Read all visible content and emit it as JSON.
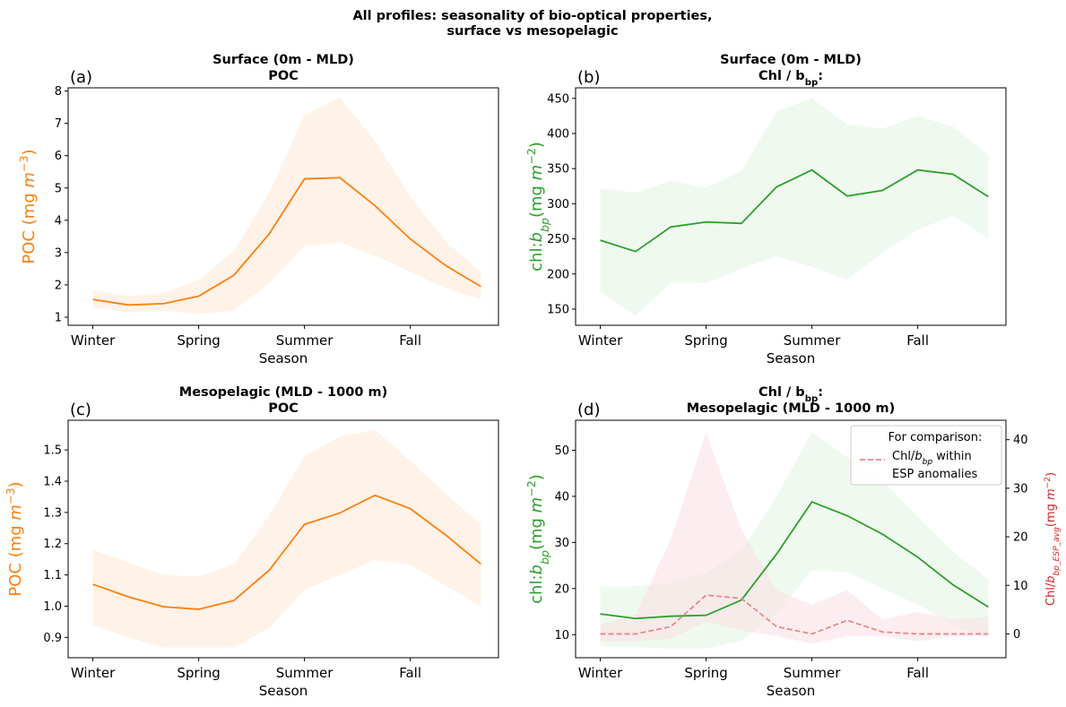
{
  "figure": {
    "title_line1": "All profiles: seasonality of bio-optical properties,",
    "title_line2": "surface vs mesopelagic"
  },
  "colors": {
    "poc": "#ff7f0e",
    "poc_band": "#ffe8d6",
    "chl": "#2ca02c",
    "chl_band": "#e3f4e3",
    "esp": "#d62728",
    "esp_line": "#e8888a",
    "esp_band": "#f9e0e3"
  },
  "chart_data": [
    {
      "id": "a",
      "type": "line",
      "panel_letter": "(a)",
      "title_lines": [
        "Surface (0m - MLD)",
        "POC"
      ],
      "xlabel": "Season",
      "ylabel": "POC (mg m^-3)",
      "ylabel_color": "#ff7f0e",
      "x_ticks": [
        0,
        3,
        6,
        9
      ],
      "x_tick_labels": [
        "Winter",
        "Spring",
        "Summer",
        "Fall"
      ],
      "xlim": [
        -0.7,
        11.5
      ],
      "ylim": [
        0.75,
        8.1
      ],
      "y_ticks": [
        1,
        2,
        3,
        4,
        5,
        6,
        7,
        8
      ],
      "y_tick_labels": [
        "1",
        "2",
        "3",
        "4",
        "5",
        "6",
        "7",
        "8"
      ],
      "x": [
        0,
        1,
        2,
        3,
        4,
        5,
        6,
        7,
        8,
        9,
        10,
        11
      ],
      "series": [
        {
          "values": [
            1.55,
            1.38,
            1.42,
            1.65,
            2.3,
            3.58,
            5.28,
            5.32,
            4.45,
            3.42,
            2.6,
            1.95
          ],
          "lower": [
            1.3,
            1.15,
            1.2,
            1.1,
            1.2,
            2.05,
            3.2,
            3.32,
            2.9,
            2.4,
            1.9,
            1.55
          ],
          "upper": [
            1.85,
            1.65,
            1.75,
            2.15,
            3.05,
            4.85,
            7.25,
            7.8,
            6.45,
            4.75,
            3.35,
            2.4
          ],
          "color": "#ff7f0e",
          "band_color": "#ffe8d6"
        }
      ]
    },
    {
      "id": "b",
      "type": "line",
      "panel_letter": "(b)",
      "title_lines": [
        "Surface (0m - MLD)",
        "Chl / b_bp:"
      ],
      "xlabel": "Season",
      "ylabel": "chl:b_bp(mg m^-2)",
      "ylabel_color": "#2ca02c",
      "x_ticks": [
        0,
        3,
        6,
        9
      ],
      "x_tick_labels": [
        "Winter",
        "Spring",
        "Summer",
        "Fall"
      ],
      "xlim": [
        -0.7,
        11.5
      ],
      "ylim": [
        127,
        465
      ],
      "y_ticks": [
        150,
        200,
        250,
        300,
        350,
        400,
        450
      ],
      "y_tick_labels": [
        "150",
        "200",
        "250",
        "300",
        "350",
        "400",
        "450"
      ],
      "x": [
        0,
        1,
        2,
        3,
        4,
        5,
        6,
        7,
        8,
        9,
        10,
        11
      ],
      "series": [
        {
          "values": [
            248,
            232,
            267,
            274,
            272,
            324,
            348,
            311,
            319,
            348,
            342,
            310
          ],
          "lower": [
            175,
            140,
            188,
            187,
            208,
            225,
            210,
            192,
            230,
            263,
            283,
            250
          ],
          "upper": [
            322,
            316,
            333,
            323,
            346,
            432,
            450,
            413,
            407,
            425,
            410,
            370
          ],
          "color": "#2ca02c",
          "band_color": "#e3f4e3"
        }
      ]
    },
    {
      "id": "c",
      "type": "line",
      "panel_letter": "(c)",
      "title_lines": [
        "Mesopelagic (MLD - 1000 m)",
        "POC"
      ],
      "xlabel": "Season",
      "ylabel": "POC (mg m^-3)",
      "ylabel_color": "#ff7f0e",
      "x_ticks": [
        0,
        3,
        6,
        9
      ],
      "x_tick_labels": [
        "Winter",
        "Spring",
        "Summer",
        "Fall"
      ],
      "xlim": [
        -0.7,
        11.5
      ],
      "ylim": [
        0.835,
        1.595
      ],
      "y_ticks": [
        0.9,
        1.0,
        1.1,
        1.2,
        1.3,
        1.4,
        1.5
      ],
      "y_tick_labels": [
        "0.9",
        "1.0",
        "1.1",
        "1.2",
        "1.3",
        "1.4",
        "1.5"
      ],
      "x": [
        0,
        1,
        2,
        3,
        4,
        5,
        6,
        7,
        8,
        9,
        10,
        11
      ],
      "series": [
        {
          "values": [
            1.07,
            1.03,
            0.998,
            0.99,
            1.018,
            1.115,
            1.262,
            1.298,
            1.355,
            1.312,
            1.228,
            1.135
          ],
          "lower": [
            0.94,
            0.9,
            0.868,
            0.868,
            0.868,
            0.93,
            1.052,
            1.1,
            1.148,
            1.132,
            1.065,
            1.0
          ],
          "upper": [
            1.18,
            1.14,
            1.1,
            1.095,
            1.135,
            1.29,
            1.48,
            1.542,
            1.565,
            1.465,
            1.36,
            1.262
          ],
          "color": "#ff7f0e",
          "band_color": "#ffe8d6"
        }
      ]
    },
    {
      "id": "d",
      "type": "line",
      "panel_letter": "(d)",
      "title_lines": [
        "Chl / b_bp:",
        "Mesopelagic (MLD - 1000 m)"
      ],
      "xlabel": "Season",
      "ylabel": "chl:b_bp(mg m^-2)",
      "ylabel_color": "#2ca02c",
      "ylabel_right": "Chl/b_bp_ESP_avg(mg m^-2)",
      "ylabel_right_color": "#d62728",
      "x_ticks": [
        0,
        3,
        6,
        9
      ],
      "x_tick_labels": [
        "Winter",
        "Spring",
        "Summer",
        "Fall"
      ],
      "xlim": [
        -0.7,
        11.5
      ],
      "ylim": [
        5,
        56.5
      ],
      "y_ticks": [
        10,
        20,
        30,
        40,
        50
      ],
      "y_tick_labels": [
        "10",
        "20",
        "30",
        "40",
        "50"
      ],
      "ylim_right": [
        -4.9,
        44
      ],
      "y_ticks_right": [
        0,
        10,
        20,
        30,
        40
      ],
      "y_tick_labels_right": [
        "0",
        "10",
        "20",
        "30",
        "40"
      ],
      "x": [
        0,
        1,
        2,
        3,
        4,
        5,
        6,
        7,
        8,
        9,
        10,
        11
      ],
      "series": [
        {
          "values": [
            14.5,
            13.5,
            14.0,
            14.2,
            17.5,
            27.5,
            38.8,
            35.8,
            31.8,
            26.8,
            20.8,
            16.0
          ],
          "lower": [
            7.5,
            7.2,
            7.0,
            7.0,
            8.6,
            14.5,
            24.0,
            23.6,
            20.0,
            16.5,
            12.0,
            9.5
          ],
          "upper": [
            20.5,
            20.5,
            21.3,
            23.4,
            28.3,
            40.0,
            54.0,
            48.5,
            43.5,
            35.5,
            28.0,
            22.0
          ],
          "color": "#2ca02c",
          "band_color": "#e3f4e3",
          "axis": "left"
        },
        {
          "values": [
            0,
            0,
            1.5,
            8.0,
            7.3,
            1.5,
            0,
            2.8,
            0.4,
            0,
            0,
            0
          ],
          "lower": [
            -1.5,
            -1.5,
            -1.0,
            2.5,
            0.7,
            -0.5,
            -2.0,
            -0.5,
            -0.5,
            -1.5,
            -0.5,
            -0.5
          ],
          "upper": [
            2.0,
            4.0,
            19.5,
            41.5,
            21.5,
            9.0,
            6.0,
            9.0,
            3.0,
            4.5,
            3.0,
            3.5
          ],
          "color": "#e8888a",
          "band_color": "#f9e0e3",
          "dashed": true,
          "axis": "right"
        }
      ],
      "legend": {
        "title": "For comparison:",
        "label_line1": "Chl/b_bp within",
        "label_line2": "ESP anomalies",
        "placement": "top-right"
      }
    }
  ]
}
